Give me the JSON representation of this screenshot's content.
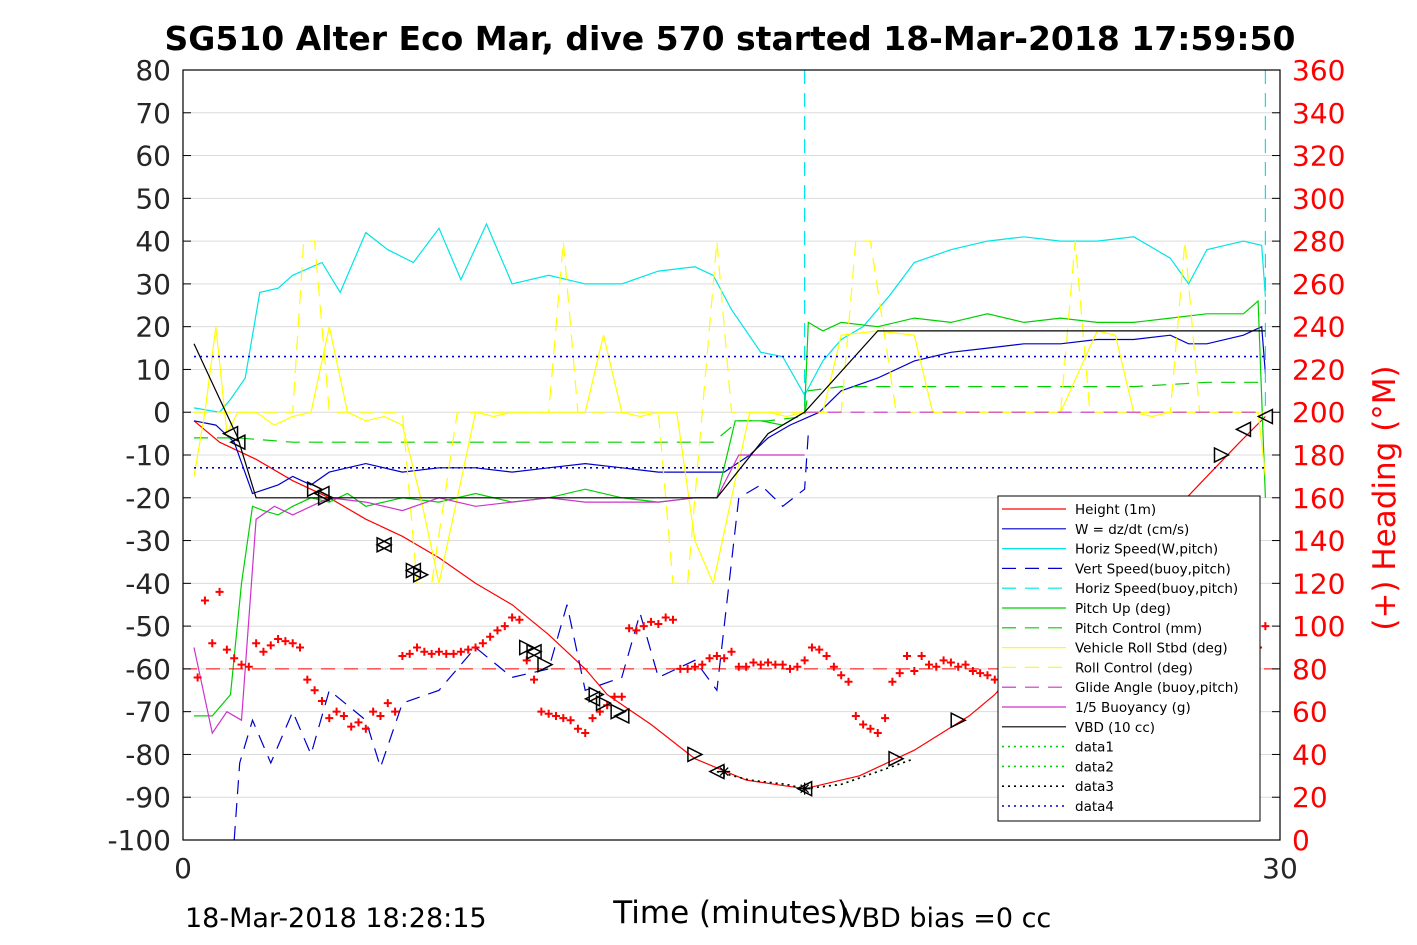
{
  "chart_data": {
    "type": "line",
    "title": "SG510 Alter Eco Mar, dive 570 started 18-Mar-2018 17:59:50",
    "xlabel": "Time (minutes)",
    "ylabel": "",
    "ylabel_right": "(+) Heading (°M)",
    "xlim": [
      0,
      30
    ],
    "ylim": [
      -100,
      80
    ],
    "ylim_right": [
      0,
      360
    ],
    "x_ticks": [
      "0",
      "30"
    ],
    "y_ticks": [
      "80",
      "70",
      "60",
      "50",
      "40",
      "30",
      "20",
      "10",
      "0",
      "-10",
      "-20",
      "-30",
      "-40",
      "-50",
      "-60",
      "-70",
      "-80",
      "-90",
      "-100"
    ],
    "y_ticks_right": [
      "360",
      "340",
      "320",
      "300",
      "280",
      "260",
      "240",
      "220",
      "200",
      "180",
      "160",
      "140",
      "120",
      "100",
      "80",
      "60",
      "40",
      "20",
      "0"
    ],
    "grid": true,
    "legend_position": "lower-right",
    "footer_left": "18-Mar-2018 18:28:15",
    "footer_right": "VBD bias =0 cc",
    "colors": {
      "red": "#ff0000",
      "blue": "#0000cc",
      "cyan": "#00e5e5",
      "green": "#00d000",
      "yellow": "#ffff00",
      "magenta": "#cc33cc",
      "black": "#000000",
      "right_axis": "#ff0000"
    },
    "series": [
      {
        "name": "Height (1m)",
        "color": "#ff0000",
        "dash": "solid",
        "x": [
          0.3,
          1.0,
          2.0,
          3.0,
          4.0,
          5.0,
          6.0,
          7.0,
          8.0,
          9.0,
          10.0,
          11.0,
          11.6,
          12.8,
          14.0,
          15.4,
          17.0,
          18.5,
          20.0,
          21.5,
          22.2,
          23.0,
          24.0,
          25.0,
          26.0,
          27.0,
          28.0,
          28.9,
          29.6
        ],
        "y": [
          -2,
          -7,
          -11,
          -16,
          -20,
          -25,
          -29,
          -34,
          -40,
          -45,
          -52,
          -60,
          -66,
          -73,
          -81,
          -86,
          -88,
          -85,
          -79,
          -71,
          -66,
          -58,
          -49,
          -41,
          -32,
          -24,
          -15,
          -7,
          -1
        ]
      },
      {
        "name": "W = dz/dt (cm/s)",
        "color": "#0000cc",
        "dash": "solid",
        "x": [
          0.3,
          0.9,
          1.4,
          1.9,
          2.6,
          3.0,
          3.5,
          4.0,
          4.5,
          5.0,
          6,
          7,
          8,
          9,
          10,
          11,
          12,
          13,
          14,
          14.8,
          15.5,
          16.0,
          16.6,
          17.4,
          18,
          19,
          20,
          21,
          22,
          23,
          24,
          25,
          26,
          27,
          27.5,
          28,
          29,
          29.5,
          29.6
        ],
        "y": [
          -2,
          -3,
          -7,
          -19,
          -17,
          -15,
          -17,
          -14,
          -13,
          -12,
          -14,
          -13,
          -13,
          -14,
          -13,
          -12,
          -13,
          -14,
          -14,
          -14,
          -10,
          -6,
          -3,
          0,
          5,
          8,
          12,
          14,
          15,
          16,
          16,
          17,
          17,
          18,
          16,
          16,
          18,
          20,
          9
        ]
      },
      {
        "name": "Horiz Speed(W,pitch)",
        "color": "#00e5e5",
        "dash": "solid",
        "x": [
          0.3,
          1.0,
          1.3,
          1.7,
          2.1,
          2.6,
          3.0,
          3.8,
          4.3,
          5.0,
          5.6,
          6.3,
          7.0,
          7.6,
          8.3,
          9.0,
          10,
          11,
          12,
          13,
          14,
          14.5,
          15,
          15.8,
          16.4,
          17.0,
          17.5,
          18,
          18.6,
          19.3,
          20,
          21,
          22,
          23,
          24,
          25,
          26,
          27,
          27.5,
          28,
          29,
          29.5,
          29.6
        ],
        "y": [
          1,
          0,
          3,
          8,
          28,
          29,
          32,
          35,
          28,
          42,
          38,
          35,
          43,
          31,
          44,
          30,
          32,
          30,
          30,
          33,
          34,
          32,
          24,
          14,
          13,
          4,
          12,
          17,
          20,
          27,
          35,
          38,
          40,
          41,
          40,
          40,
          41,
          36,
          30,
          38,
          40,
          39,
          27
        ]
      },
      {
        "name": "Vert Speed(buoy,pitch)",
        "color": "#0000cc",
        "dash": "long-dash",
        "x": [
          1.4,
          1.55,
          1.9,
          2.4,
          3.0,
          3.5,
          4.0,
          5.0,
          5.4,
          6.0,
          7.0,
          8.0,
          9.0,
          10.0,
          10.5,
          11.0,
          12.0,
          12.5,
          13.0,
          14.0,
          14.6,
          15.2,
          15.8,
          16.4,
          17.0,
          17.1
        ],
        "y": [
          -100,
          -82,
          -72,
          -82,
          -70,
          -80,
          -65,
          -72,
          -83,
          -68,
          -65,
          -55,
          -62,
          -60,
          -45,
          -65,
          -62,
          -47,
          -62,
          -58,
          -65,
          -20,
          -17,
          -22,
          -18,
          -5
        ]
      },
      {
        "name": "Horiz Speed(buoy,pitch)",
        "color": "#00e5e5",
        "dash": "long-dash",
        "x": [
          17.0,
          17.0
        ],
        "y": [
          80,
          0
        ],
        "x2": [
          29.6,
          29.6
        ],
        "y2": [
          80,
          0
        ]
      },
      {
        "name": "Pitch Up (deg)",
        "color": "#00d000",
        "dash": "solid",
        "x": [
          0.3,
          0.8,
          1.3,
          1.6,
          1.9,
          2.2,
          2.6,
          3.0,
          3.5,
          4.0,
          4.5,
          5.0,
          6,
          7,
          8,
          9,
          10,
          11,
          12,
          13,
          14,
          14.6,
          15.1,
          15.8,
          16.4,
          17.0,
          17.1,
          17.5,
          18,
          19,
          20,
          21,
          22,
          23,
          24,
          25,
          26,
          27,
          28,
          29,
          29.4,
          29.6
        ],
        "y": [
          -71,
          -71,
          -66,
          -40,
          -22,
          -23,
          -24,
          -22,
          -20,
          -21,
          -19,
          -22,
          -20,
          -21,
          -19,
          -21,
          -20,
          -18,
          -20,
          -21,
          -20,
          -20,
          -2,
          -2,
          -3,
          0,
          21,
          19,
          21,
          20,
          22,
          21,
          23,
          21,
          22,
          21,
          21,
          22,
          23,
          23,
          26,
          -20
        ]
      },
      {
        "name": "Pitch Control (mm)",
        "color": "#00d000",
        "dash": "long-dash",
        "x": [
          0.3,
          1.5,
          3,
          5,
          7,
          9,
          11,
          13,
          14.5,
          15.2,
          16.0,
          17.0,
          17.1,
          18,
          20,
          22,
          24,
          26,
          28,
          29.6
        ],
        "y": [
          -6,
          -6,
          -7,
          -7,
          -7,
          -7,
          -7,
          -7,
          -7,
          -2,
          -2,
          -1,
          5,
          6,
          6,
          6,
          6,
          6,
          7,
          7
        ]
      },
      {
        "name": "Vehicle Roll Stbd (deg)",
        "color": "#ffff00",
        "dash": "solid",
        "x": [
          0.3,
          0.6,
          0.9,
          1.2,
          1.5,
          2.0,
          2.5,
          3.0,
          3.5,
          4.0,
          4.5,
          5.0,
          5.5,
          6.0,
          6.5,
          7.0,
          7.5,
          8.0,
          8.5,
          9.0,
          10,
          11,
          11.5,
          12,
          12.5,
          13,
          13.5,
          14,
          14.5,
          15,
          15.5,
          16,
          16.5,
          17,
          17.5,
          18,
          19,
          20,
          20.5,
          21,
          22,
          23,
          24,
          25,
          25.5,
          26,
          26.5,
          27,
          27.5,
          28,
          29,
          29.4,
          29.6
        ],
        "y": [
          -15,
          0,
          20,
          -5,
          0,
          0,
          -3,
          -1,
          0,
          20,
          0,
          -2,
          -1,
          -3,
          -20,
          -40,
          -20,
          0,
          -1,
          0,
          0,
          0,
          18,
          0,
          -1,
          0,
          0,
          -30,
          -40,
          -20,
          0,
          0,
          -1,
          0,
          0,
          18,
          19,
          18,
          0,
          0,
          0,
          0,
          0,
          19,
          18,
          0,
          -1,
          0,
          0,
          0,
          0,
          0,
          -15
        ]
      },
      {
        "name": "Roll Control (deg)",
        "color": "#ffff00",
        "dash": "long-dash",
        "x": [
          0.3,
          1.0,
          2.0,
          3.0,
          3.3,
          3.6,
          4.0,
          5.0,
          6.0,
          6.4,
          6.8,
          7.5,
          8.0,
          9.0,
          10.0,
          10.4,
          10.8,
          12.0,
          13.0,
          13.4,
          13.8,
          14.2,
          14.6,
          15.0,
          16.0,
          17.0,
          18.0,
          18.4,
          18.8,
          19.5,
          20.0,
          22.0,
          24.0,
          24.4,
          24.8,
          26.0,
          27.0,
          27.4,
          27.8,
          28.5,
          29.6
        ],
        "y": [
          0,
          0,
          0,
          0,
          40,
          40,
          0,
          0,
          0,
          -40,
          -40,
          0,
          0,
          0,
          0,
          40,
          0,
          0,
          0,
          -40,
          -40,
          0,
          40,
          0,
          0,
          0,
          0,
          40,
          40,
          0,
          0,
          0,
          0,
          40,
          0,
          0,
          0,
          40,
          0,
          0,
          0
        ]
      },
      {
        "name": "Glide Angle (buoy,pitch)",
        "color": "#cc33cc",
        "dash": "long-dash",
        "x": [
          17.0,
          18,
          20,
          22,
          24,
          26,
          28,
          29.6
        ],
        "y": [
          0,
          0,
          0,
          0,
          0,
          0,
          0,
          0
        ]
      },
      {
        "name": "1/5 Buoyancy (g)",
        "color": "#cc33cc",
        "dash": "solid",
        "x": [
          0.3,
          0.8,
          1.2,
          1.6,
          2.0,
          2.5,
          3.0,
          4.0,
          5.0,
          6.0,
          7.0,
          8.0,
          9.0,
          10.0,
          11.0,
          12.0,
          13.0,
          14.0,
          14.6,
          15.2,
          16.0,
          16.6,
          17.0
        ],
        "y": [
          -55,
          -75,
          -70,
          -72,
          -25,
          -22,
          -24,
          -20,
          -21,
          -23,
          -20,
          -22,
          -21,
          -20,
          -21,
          -21,
          -21,
          -20,
          -20,
          -10,
          -10,
          -10,
          -10
        ]
      },
      {
        "name": "VBD (10 cc)",
        "color": "#000000",
        "dash": "solid",
        "x": [
          0.3,
          1.5,
          2.0,
          4.0,
          6.0,
          8.0,
          10.0,
          12.0,
          14.0,
          14.6,
          16.0,
          17.0,
          19.0,
          21.0,
          24.0,
          27.0,
          29.6
        ],
        "y": [
          16,
          -6,
          -20,
          -20,
          -20,
          -20,
          -20,
          -20,
          -20,
          -20,
          -5,
          0,
          19,
          19,
          19,
          19,
          19
        ]
      },
      {
        "name": "data1",
        "color": "#00d000",
        "dash": "dotted",
        "x": [
          14.6,
          15.5,
          16.5,
          17.0,
          18.0,
          19.0,
          20.0
        ],
        "y": [
          -84,
          -86,
          -87,
          -88,
          -87,
          -84,
          -81
        ]
      },
      {
        "name": "data2",
        "color": "#00d000",
        "dash": "dotted",
        "x": [],
        "y": []
      },
      {
        "name": "data3",
        "color": "#000000",
        "dash": "dotted",
        "x": [
          14.6,
          15.5,
          16.5,
          17.0,
          18.0,
          19.0,
          20.0
        ],
        "y": [
          -84,
          -86,
          -87,
          -88,
          -87,
          -84,
          -81
        ]
      },
      {
        "name": "data4",
        "color": "#0000cc",
        "dash": "dotted",
        "x": [
          0.3,
          29.6
        ],
        "y": [
          13,
          13
        ],
        "x2": [
          0.3,
          29.6
        ],
        "y2": [
          -13,
          -13
        ]
      }
    ],
    "heading_points": {
      "x": [
        0.4,
        0.6,
        0.8,
        1.0,
        1.2,
        1.4,
        1.6,
        1.8,
        2.0,
        2.2,
        2.4,
        2.6,
        2.8,
        3.0,
        3.2,
        3.4,
        3.6,
        3.8,
        4.0,
        4.2,
        4.4,
        4.6,
        4.8,
        5.0,
        5.2,
        5.4,
        5.6,
        5.8,
        6.0,
        6.2,
        6.4,
        6.6,
        6.8,
        7.0,
        7.2,
        7.4,
        7.6,
        7.8,
        8.0,
        8.2,
        8.4,
        8.6,
        8.8,
        9.0,
        9.2,
        9.4,
        9.6,
        9.8,
        10.0,
        10.2,
        10.4,
        10.6,
        10.8,
        11.0,
        11.2,
        11.4,
        11.6,
        11.8,
        12.0,
        12.2,
        12.4,
        12.6,
        12.8,
        13.0,
        13.2,
        13.4,
        13.6,
        13.8,
        14.0,
        14.2,
        14.4,
        14.6,
        14.8,
        15.0,
        15.2,
        15.4,
        15.6,
        15.8,
        16.0,
        16.2,
        16.4,
        16.6,
        16.8,
        17.0,
        17.2,
        17.4,
        17.6,
        17.8,
        18.0,
        18.2,
        18.4,
        18.6,
        18.8,
        19.0,
        19.2,
        19.4,
        19.6,
        19.8,
        20.0,
        20.2,
        20.4,
        20.6,
        20.8,
        21.0,
        21.2,
        21.4,
        21.6,
        21.8,
        22.0,
        22.2,
        22.4,
        22.6,
        22.8,
        23.0,
        23.2,
        23.4,
        23.6,
        23.8,
        24.0,
        24.2,
        24.4,
        24.6,
        24.8,
        25.0,
        25.2,
        25.4,
        25.6,
        25.8,
        26.0,
        26.2,
        26.4,
        26.6,
        26.8,
        27.0,
        27.2,
        27.4,
        27.6,
        27.8,
        28.0,
        28.2,
        28.4,
        28.6,
        28.8,
        29.0,
        29.2,
        29.4,
        29.6
      ],
      "y": [
        76,
        112,
        92,
        116,
        89,
        85,
        82,
        81,
        92,
        88,
        91,
        94,
        93,
        92,
        90,
        75,
        70,
        65,
        57,
        60,
        58,
        53,
        55,
        52,
        60,
        58,
        64,
        60,
        86,
        87,
        90,
        88,
        87,
        88,
        87,
        87,
        88,
        89,
        90,
        92,
        95,
        98,
        100,
        104,
        103,
        84,
        75,
        60,
        59,
        58,
        57,
        56,
        52,
        50,
        57,
        60,
        63,
        67,
        67,
        99,
        98,
        100,
        102,
        101,
        104,
        103,
        80,
        80,
        81,
        82,
        85,
        86,
        85,
        88,
        81,
        81,
        83,
        82,
        83,
        82,
        82,
        80,
        81,
        84,
        90,
        89,
        86,
        81,
        77,
        74,
        58,
        54,
        52,
        50,
        57,
        74,
        78,
        86,
        79,
        86,
        82,
        81,
        84,
        83,
        81,
        82,
        79,
        78,
        77,
        75,
        79,
        76,
        82,
        71,
        58,
        51,
        48,
        42,
        40,
        38,
        36,
        50,
        56,
        64,
        72,
        78,
        84,
        89,
        86,
        82,
        80,
        86,
        80,
        80,
        77,
        75,
        73,
        60,
        58,
        59,
        58,
        58,
        70,
        74,
        77,
        90,
        100
      ]
    },
    "heading_reference": {
      "y": 80,
      "color": "#ff0000",
      "dash": "long-dash"
    },
    "markers": {
      "right_triangles": {
        "x": [
          3.6,
          3.9,
          5.5,
          6.3,
          6.5,
          9.4,
          9.6,
          9.9,
          11.3,
          11.5,
          11.9,
          14.0,
          19.5,
          21.2,
          24.5,
          25.5,
          25.7,
          28.4
        ],
        "y": [
          -18,
          -20,
          -31,
          -37,
          -38,
          -55,
          -56,
          -59,
          -66,
          -68,
          -70,
          -80,
          -81,
          -72,
          -40,
          -31,
          -29,
          -10
        ]
      },
      "left_triangles": {
        "x": [
          1.3,
          1.5,
          3.8,
          5.5,
          6.3,
          9.6,
          11.2,
          12.0,
          14.6,
          17.0,
          29.0,
          29.6
        ],
        "y": [
          -5,
          -7,
          -19,
          -31,
          -37,
          -56,
          -67,
          -71,
          -84,
          -88,
          -4,
          -1
        ]
      },
      "star_points": {
        "x": [
          14.8,
          17.0
        ],
        "y": [
          -84,
          -88
        ]
      }
    }
  }
}
